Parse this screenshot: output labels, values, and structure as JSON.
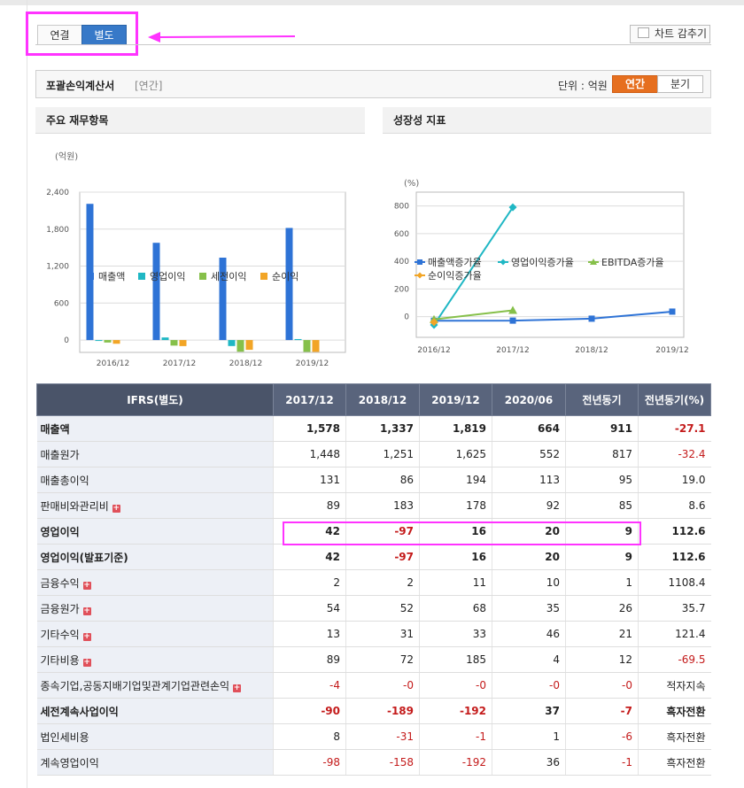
{
  "tabs": {
    "consolidated": "연결",
    "separate": "별도"
  },
  "hide_chart_label": "차트 감추기",
  "section": {
    "title": "포괄손익계산서",
    "subtitle": "[연간]",
    "unit_label": "단위 : 억원",
    "period_annual": "연간",
    "period_quarter": "분기"
  },
  "colors": {
    "accent_orange": "#e66f1f",
    "highlight": "#ff33ff",
    "tab_active": "#3779c8",
    "negative": "#c41b1b"
  },
  "chart_data": [
    {
      "title": "주요 재무항목",
      "type": "bar",
      "ylabel": "(억원)",
      "categories": [
        "2016/12",
        "2017/12",
        "2018/12",
        "2019/12"
      ],
      "ylim": [
        -200,
        2400
      ],
      "yticks": [
        "2,400",
        "1,800",
        "1,200",
        "600",
        "0"
      ],
      "ytick_values": [
        2400,
        1800,
        1200,
        600,
        0
      ],
      "grid": true,
      "legend_position": "bottom",
      "series": [
        {
          "name": "매출액",
          "color": "#2e73d6",
          "values": [
            2210,
            1578,
            1337,
            1819
          ]
        },
        {
          "name": "영업이익",
          "color": "#1fb7c4",
          "values": [
            -5,
            42,
            -97,
            16
          ]
        },
        {
          "name": "세전이익",
          "color": "#86c04a",
          "values": [
            -40,
            -90,
            -189,
            -192
          ]
        },
        {
          "name": "순이익",
          "color": "#f2a526",
          "values": [
            -60,
            -98,
            -158,
            -192
          ]
        }
      ]
    },
    {
      "title": "성장성 지표",
      "type": "line",
      "ylabel": "(%)",
      "categories": [
        "2016/12",
        "2017/12",
        "2018/12",
        "2019/12"
      ],
      "ylim": [
        -150,
        900
      ],
      "yticks": [
        "800",
        "600",
        "400",
        "200",
        "0"
      ],
      "ytick_values": [
        800,
        600,
        400,
        200,
        0
      ],
      "grid": true,
      "legend_position": "bottom",
      "series": [
        {
          "name": "매출액증가율",
          "color": "#2e73d6",
          "marker": "square",
          "values": [
            -30,
            -29,
            -15,
            36
          ]
        },
        {
          "name": "영업이익증가율",
          "color": "#1fb7c4",
          "marker": "diamond",
          "values": [
            -60,
            790,
            null,
            null
          ]
        },
        {
          "name": "EBITDA증가율",
          "color": "#86c04a",
          "marker": "triangle",
          "values": [
            -20,
            45,
            null,
            null
          ]
        },
        {
          "name": "순이익증가율",
          "color": "#f2a526",
          "marker": "diamond",
          "values": [
            -40,
            null,
            null,
            null
          ]
        }
      ]
    }
  ],
  "table": {
    "headers": [
      "IFRS(별도)",
      "2017/12",
      "2018/12",
      "2019/12",
      "2020/06",
      "전년동기",
      "전년동기(%)"
    ],
    "rows": [
      {
        "label": "매출액",
        "bold": true,
        "plus": false,
        "values": [
          "1,578",
          "1,337",
          "1,819",
          "664",
          "911",
          "-27.1"
        ]
      },
      {
        "label": "매출원가",
        "bold": false,
        "plus": false,
        "values": [
          "1,448",
          "1,251",
          "1,625",
          "552",
          "817",
          "-32.4"
        ]
      },
      {
        "label": "매출총이익",
        "bold": false,
        "plus": false,
        "values": [
          "131",
          "86",
          "194",
          "113",
          "95",
          "19.0"
        ]
      },
      {
        "label": "판매비와관리비",
        "bold": false,
        "plus": true,
        "values": [
          "89",
          "183",
          "178",
          "92",
          "85",
          "8.6"
        ]
      },
      {
        "label": "영업이익",
        "bold": true,
        "plus": false,
        "values": [
          "42",
          "-97",
          "16",
          "20",
          "9",
          "112.6"
        ]
      },
      {
        "label": "영업이익(발표기준)",
        "bold": true,
        "plus": false,
        "values": [
          "42",
          "-97",
          "16",
          "20",
          "9",
          "112.6"
        ]
      },
      {
        "label": "금융수익",
        "bold": false,
        "plus": true,
        "values": [
          "2",
          "2",
          "11",
          "10",
          "1",
          "1108.4"
        ]
      },
      {
        "label": "금융원가",
        "bold": false,
        "plus": true,
        "values": [
          "54",
          "52",
          "68",
          "35",
          "26",
          "35.7"
        ]
      },
      {
        "label": "기타수익",
        "bold": false,
        "plus": true,
        "values": [
          "13",
          "31",
          "33",
          "46",
          "21",
          "121.4"
        ]
      },
      {
        "label": "기타비용",
        "bold": false,
        "plus": true,
        "values": [
          "89",
          "72",
          "185",
          "4",
          "12",
          "-69.5"
        ]
      },
      {
        "label": "종속기업,공동지배기업및관계기업관련손익",
        "bold": false,
        "plus": true,
        "values": [
          "-4",
          "-0",
          "-0",
          "-0",
          "-0",
          "적자지속"
        ]
      },
      {
        "label": "세전계속사업이익",
        "bold": true,
        "plus": false,
        "values": [
          "-90",
          "-189",
          "-192",
          "37",
          "-7",
          "흑자전환"
        ]
      },
      {
        "label": "법인세비용",
        "bold": false,
        "plus": false,
        "values": [
          "8",
          "-31",
          "-1",
          "1",
          "-6",
          "흑자전환"
        ]
      },
      {
        "label": "계속영업이익",
        "bold": false,
        "plus": false,
        "values": [
          "-98",
          "-158",
          "-192",
          "36",
          "-1",
          "흑자전환"
        ]
      }
    ]
  }
}
